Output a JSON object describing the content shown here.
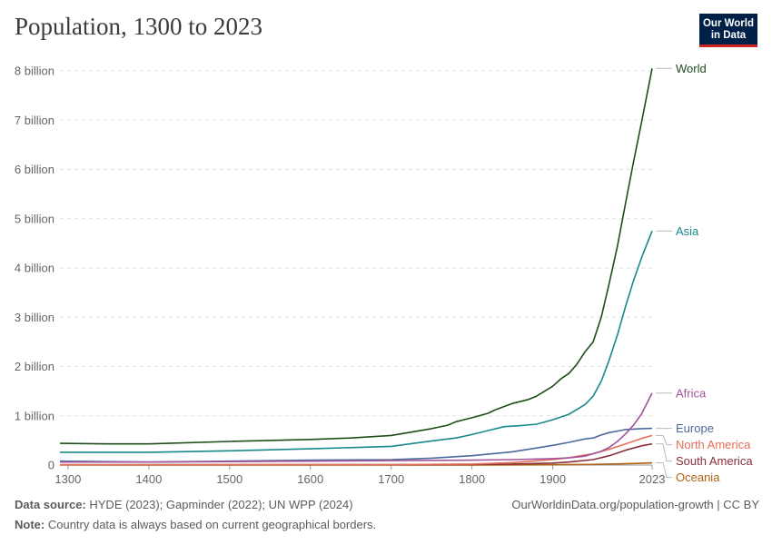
{
  "header": {
    "title": "Population, 1300 to 2023",
    "logo_line1": "Our World",
    "logo_line2": "in Data"
  },
  "footer": {
    "source_label": "Data source:",
    "source_text": "HYDE (2023); Gapminder (2022); UN WPP (2024)",
    "note_label": "Note:",
    "note_text": "Country data is always based on current geographical borders.",
    "url_text": "OurWorldinData.org/population-growth | CC BY"
  },
  "chart_data": {
    "type": "line",
    "xlim": [
      1290,
      2023
    ],
    "ylim": [
      0,
      8000000000
    ],
    "x_ticks": [
      1300,
      1400,
      1500,
      1600,
      1700,
      1800,
      1900,
      2023
    ],
    "x_tick_labels": [
      "1300",
      "1400",
      "1500",
      "1600",
      "1700",
      "1800",
      "1900",
      "2023"
    ],
    "y_ticks": [
      0,
      1000000000,
      2000000000,
      3000000000,
      4000000000,
      5000000000,
      6000000000,
      7000000000,
      8000000000
    ],
    "y_tick_labels": [
      "0",
      "1 billion",
      "2 billion",
      "3 billion",
      "4 billion",
      "5 billion",
      "6 billion",
      "7 billion",
      "8 billion"
    ],
    "grid": "horizontal dashed",
    "legend": "line-end labels",
    "series": [
      {
        "name": "World",
        "color": "#1f4d1a",
        "points": [
          [
            1290,
            440000000
          ],
          [
            1350,
            430000000
          ],
          [
            1400,
            430000000
          ],
          [
            1500,
            480000000
          ],
          [
            1600,
            520000000
          ],
          [
            1650,
            550000000
          ],
          [
            1700,
            600000000
          ],
          [
            1750,
            740000000
          ],
          [
            1770,
            810000000
          ],
          [
            1780,
            880000000
          ],
          [
            1800,
            960000000
          ],
          [
            1820,
            1050000000
          ],
          [
            1830,
            1130000000
          ],
          [
            1850,
            1250000000
          ],
          [
            1870,
            1330000000
          ],
          [
            1880,
            1400000000
          ],
          [
            1900,
            1600000000
          ],
          [
            1910,
            1750000000
          ],
          [
            1920,
            1860000000
          ],
          [
            1930,
            2050000000
          ],
          [
            1940,
            2300000000
          ],
          [
            1950,
            2500000000
          ],
          [
            1960,
            3000000000
          ],
          [
            1970,
            3700000000
          ],
          [
            1980,
            4440000000
          ],
          [
            1990,
            5300000000
          ],
          [
            2000,
            6150000000
          ],
          [
            2010,
            6960000000
          ],
          [
            2023,
            8050000000
          ]
        ]
      },
      {
        "name": "Asia",
        "color": "#18898a",
        "points": [
          [
            1290,
            260000000
          ],
          [
            1400,
            260000000
          ],
          [
            1500,
            290000000
          ],
          [
            1600,
            330000000
          ],
          [
            1700,
            380000000
          ],
          [
            1750,
            490000000
          ],
          [
            1780,
            550000000
          ],
          [
            1800,
            620000000
          ],
          [
            1820,
            700000000
          ],
          [
            1840,
            780000000
          ],
          [
            1860,
            800000000
          ],
          [
            1880,
            830000000
          ],
          [
            1900,
            920000000
          ],
          [
            1920,
            1030000000
          ],
          [
            1940,
            1230000000
          ],
          [
            1950,
            1400000000
          ],
          [
            1960,
            1700000000
          ],
          [
            1970,
            2140000000
          ],
          [
            1980,
            2640000000
          ],
          [
            1990,
            3210000000
          ],
          [
            2000,
            3740000000
          ],
          [
            2010,
            4210000000
          ],
          [
            2023,
            4750000000
          ]
        ]
      },
      {
        "name": "Africa",
        "color": "#a2559c",
        "points": [
          [
            1290,
            60000000
          ],
          [
            1400,
            60000000
          ],
          [
            1500,
            70000000
          ],
          [
            1600,
            80000000
          ],
          [
            1700,
            90000000
          ],
          [
            1800,
            100000000
          ],
          [
            1850,
            110000000
          ],
          [
            1900,
            130000000
          ],
          [
            1920,
            145000000
          ],
          [
            1940,
            180000000
          ],
          [
            1950,
            230000000
          ],
          [
            1960,
            280000000
          ],
          [
            1970,
            360000000
          ],
          [
            1980,
            480000000
          ],
          [
            1990,
            630000000
          ],
          [
            2000,
            810000000
          ],
          [
            2010,
            1040000000
          ],
          [
            2023,
            1460000000
          ]
        ]
      },
      {
        "name": "Europe",
        "color": "#4c6a9c",
        "points": [
          [
            1290,
            80000000
          ],
          [
            1400,
            60000000
          ],
          [
            1500,
            80000000
          ],
          [
            1600,
            100000000
          ],
          [
            1700,
            110000000
          ],
          [
            1750,
            140000000
          ],
          [
            1800,
            190000000
          ],
          [
            1850,
            270000000
          ],
          [
            1900,
            400000000
          ],
          [
            1920,
            460000000
          ],
          [
            1940,
            530000000
          ],
          [
            1950,
            550000000
          ],
          [
            1960,
            610000000
          ],
          [
            1970,
            660000000
          ],
          [
            1980,
            690000000
          ],
          [
            1990,
            720000000
          ],
          [
            2000,
            730000000
          ],
          [
            2010,
            740000000
          ],
          [
            2023,
            745000000
          ]
        ]
      },
      {
        "name": "North America",
        "color": "#e56e5a",
        "points": [
          [
            1290,
            5000000
          ],
          [
            1500,
            10000000
          ],
          [
            1700,
            10000000
          ],
          [
            1800,
            20000000
          ],
          [
            1850,
            50000000
          ],
          [
            1900,
            110000000
          ],
          [
            1920,
            150000000
          ],
          [
            1950,
            230000000
          ],
          [
            1970,
            320000000
          ],
          [
            1990,
            430000000
          ],
          [
            2010,
            540000000
          ],
          [
            2023,
            600000000
          ]
        ]
      },
      {
        "name": "South America",
        "color": "#883039",
        "points": [
          [
            1290,
            5000000
          ],
          [
            1500,
            10000000
          ],
          [
            1700,
            10000000
          ],
          [
            1800,
            10000000
          ],
          [
            1850,
            20000000
          ],
          [
            1900,
            40000000
          ],
          [
            1920,
            60000000
          ],
          [
            1950,
            110000000
          ],
          [
            1970,
            190000000
          ],
          [
            1990,
            300000000
          ],
          [
            2010,
            390000000
          ],
          [
            2023,
            430000000
          ]
        ]
      },
      {
        "name": "Oceania",
        "color": "#b16214",
        "points": [
          [
            1290,
            1000000
          ],
          [
            1800,
            2000000
          ],
          [
            1900,
            6000000
          ],
          [
            1950,
            13000000
          ],
          [
            2000,
            31000000
          ],
          [
            2023,
            45000000
          ]
        ]
      }
    ]
  }
}
